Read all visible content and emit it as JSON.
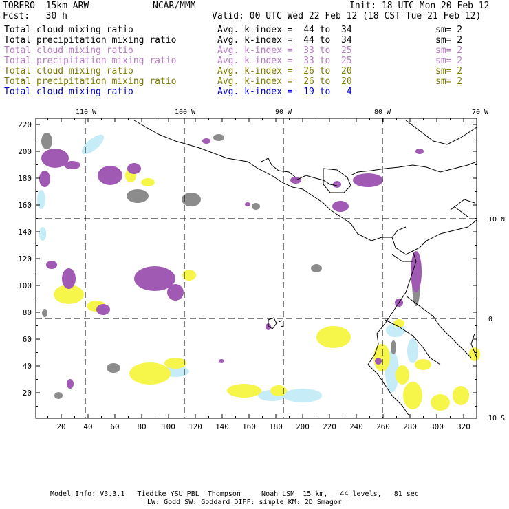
{
  "header": {
    "model": "TORERO  15km ARW",
    "org": "NCAR/MMM",
    "init": "Init: 18 UTC Mon 20 Feb 12",
    "fcst": "Fcst:   30 h",
    "valid": "Valid: 00 UTC Wed 22 Feb 12 (18 CST Tue 21 Feb 12)"
  },
  "legend": [
    {
      "field": "Total cloud mixing ratio",
      "index": "Avg. k-index =  44 to  34",
      "sm": "sm= 2",
      "color": "#000000"
    },
    {
      "field": "Total precipitation mixing ratio",
      "index": "Avg. k-index =  44 to  34",
      "sm": "sm= 2",
      "color": "#000000"
    },
    {
      "field": "Total cloud mixing ratio",
      "index": "Avg. k-index =  33 to  25",
      "sm": "sm= 2",
      "color": "#b67bc4"
    },
    {
      "field": "Total precipitation mixing ratio",
      "index": "Avg. k-index =  33 to  25",
      "sm": "sm= 2",
      "color": "#b67bc4"
    },
    {
      "field": "Total cloud mixing ratio",
      "index": "Avg. k-index =  26 to  20",
      "sm": "sm= 2",
      "color": "#7d7a00"
    },
    {
      "field": "Total precipitation mixing ratio",
      "index": "Avg. k-index =  26 to  20",
      "sm": "sm= 2",
      "color": "#7d7a00"
    },
    {
      "field": "Total cloud mixing ratio",
      "index": "Avg. k-index =  19 to   4",
      "sm": "",
      "color": "#0000cc"
    }
  ],
  "map": {
    "lon_labels": [
      "110 W",
      "100 W",
      "90 W",
      "80 W",
      "70 W"
    ],
    "lat_labels": [
      "10 N",
      "0",
      "10 S"
    ],
    "y_ticks": [
      "220",
      "200",
      "180",
      "160",
      "140",
      "120",
      "100",
      "80",
      "60",
      "40",
      "20"
    ],
    "x_ticks": [
      "20",
      "40",
      "60",
      "80",
      "100",
      "120",
      "140",
      "160",
      "180",
      "200",
      "220",
      "240",
      "260",
      "280",
      "300",
      "320"
    ],
    "colors": {
      "cloud_gray": "#8c8c8c",
      "precip_purple": "#a05ab4",
      "cloud_yellow": "#f5f54a",
      "precip_cyan": "#c6ecf7"
    }
  },
  "footer": {
    "line1": "Model Info: V3.3.1   Tiedtke YSU PBL  Thompson     Noah LSM  15 km,   44 levels,   81 sec",
    "line2": "LW: Godd SW: Goddard DIFF: simple KM: 2D Smagor"
  }
}
